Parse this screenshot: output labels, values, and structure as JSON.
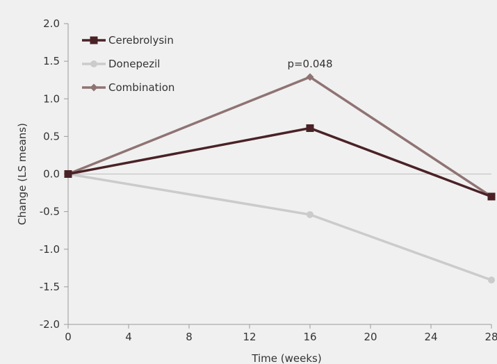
{
  "chart_data": {
    "type": "line",
    "title": "",
    "xlabel": "Time (weeks)",
    "ylabel": "Change (LS means)",
    "x": [
      0,
      16,
      28
    ],
    "xlim": [
      0,
      28
    ],
    "ylim": [
      -2.0,
      2.0
    ],
    "x_ticks": [
      0,
      4,
      8,
      12,
      16,
      20,
      24,
      28
    ],
    "x_tick_labels": [
      "0",
      "4",
      "8",
      "12",
      "16",
      "20",
      "24",
      "28"
    ],
    "y_ticks": [
      2.0,
      1.5,
      1.0,
      0.5,
      0.0,
      -0.5,
      -1.0,
      -1.5,
      -2.0
    ],
    "y_tick_labels": [
      "2.0",
      "1.5",
      "1.0",
      "0.5",
      "0.0",
      "-0.5",
      "-1.0",
      "-1.5",
      "-2.0"
    ],
    "grid": false,
    "zero_line": true,
    "legend_position": "top-left",
    "series": [
      {
        "name": "Cerebrolysin",
        "values": [
          0.0,
          0.61,
          -0.3
        ],
        "color": "#4a2226",
        "marker": "square"
      },
      {
        "name": "Donepezil",
        "values": [
          0.0,
          -0.54,
          -1.41
        ],
        "color": "#cbcbcb",
        "marker": "circle"
      },
      {
        "name": "Combination",
        "values": [
          0.0,
          1.29,
          -0.3
        ],
        "color": "#8f7373",
        "marker": "diamond"
      }
    ],
    "annotations": [
      {
        "text": "p=0.048",
        "x": 16,
        "y": 1.29
      }
    ]
  }
}
